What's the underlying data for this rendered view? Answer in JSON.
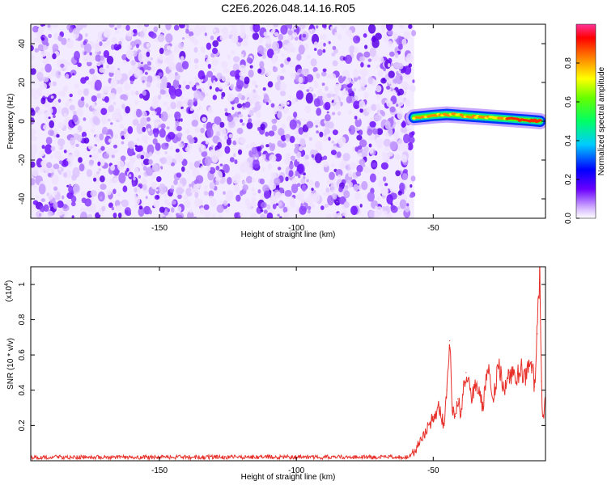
{
  "title": "C2E6.2026.048.14.16.R05",
  "chart_data": [
    {
      "type": "heatmap",
      "xlabel": "Height of straight line (km)",
      "ylabel": "Frequency (Hz)",
      "xlim": [
        -197,
        -9
      ],
      "ylim": [
        -50,
        50
      ],
      "x_ticks": [
        -150,
        -100,
        -50
      ],
      "y_ticks": [
        -40,
        -20,
        0,
        20,
        40
      ],
      "noise_region_x": [
        -197,
        -57
      ],
      "signal_track": {
        "x": [
          -57,
          -50,
          -45,
          -40,
          -35,
          -30,
          -25,
          -20,
          -15,
          -11
        ],
        "y": [
          2,
          3,
          3.5,
          3,
          2.5,
          2,
          1.5,
          1,
          0.5,
          0
        ],
        "peak_amplitude": 1.0
      },
      "colorbar": {
        "label": "Normalized spectral amplitude",
        "ticks": [
          0.0,
          0.2,
          0.4,
          0.6,
          0.8
        ],
        "range": [
          0,
          1
        ]
      }
    },
    {
      "type": "line",
      "xlabel": "Height of straight line (km)",
      "ylabel": "SNR (10 * v/v)",
      "y_multiplier": "(x10",
      "y_multiplier_exp": "4",
      "xlim": [
        -197,
        -9
      ],
      "ylim": [
        0,
        1.1
      ],
      "x_ticks": [
        -150,
        -100,
        -50
      ],
      "y_ticks": [
        0.2,
        0.4,
        0.6,
        0.8,
        1.0
      ],
      "series": [
        {
          "color": "#e8302a",
          "x": [
            -197,
            -170,
            -140,
            -110,
            -80,
            -60,
            -57,
            -55,
            -53,
            -51,
            -50,
            -48,
            -46,
            -45,
            -44,
            -43,
            -42,
            -41,
            -40,
            -38,
            -36,
            -34,
            -32,
            -30,
            -28,
            -26,
            -24,
            -22,
            -20,
            -18,
            -16,
            -14,
            -13,
            -12,
            -11,
            -10.5,
            -10,
            -9
          ],
          "y": [
            0.02,
            0.02,
            0.02,
            0.02,
            0.02,
            0.02,
            0.05,
            0.1,
            0.15,
            0.22,
            0.25,
            0.3,
            0.2,
            0.4,
            0.68,
            0.3,
            0.25,
            0.35,
            0.28,
            0.5,
            0.35,
            0.45,
            0.3,
            0.52,
            0.35,
            0.55,
            0.4,
            0.5,
            0.45,
            0.52,
            0.48,
            0.56,
            0.42,
            0.72,
            1.1,
            0.45,
            0.25,
            0.32
          ]
        }
      ]
    }
  ]
}
